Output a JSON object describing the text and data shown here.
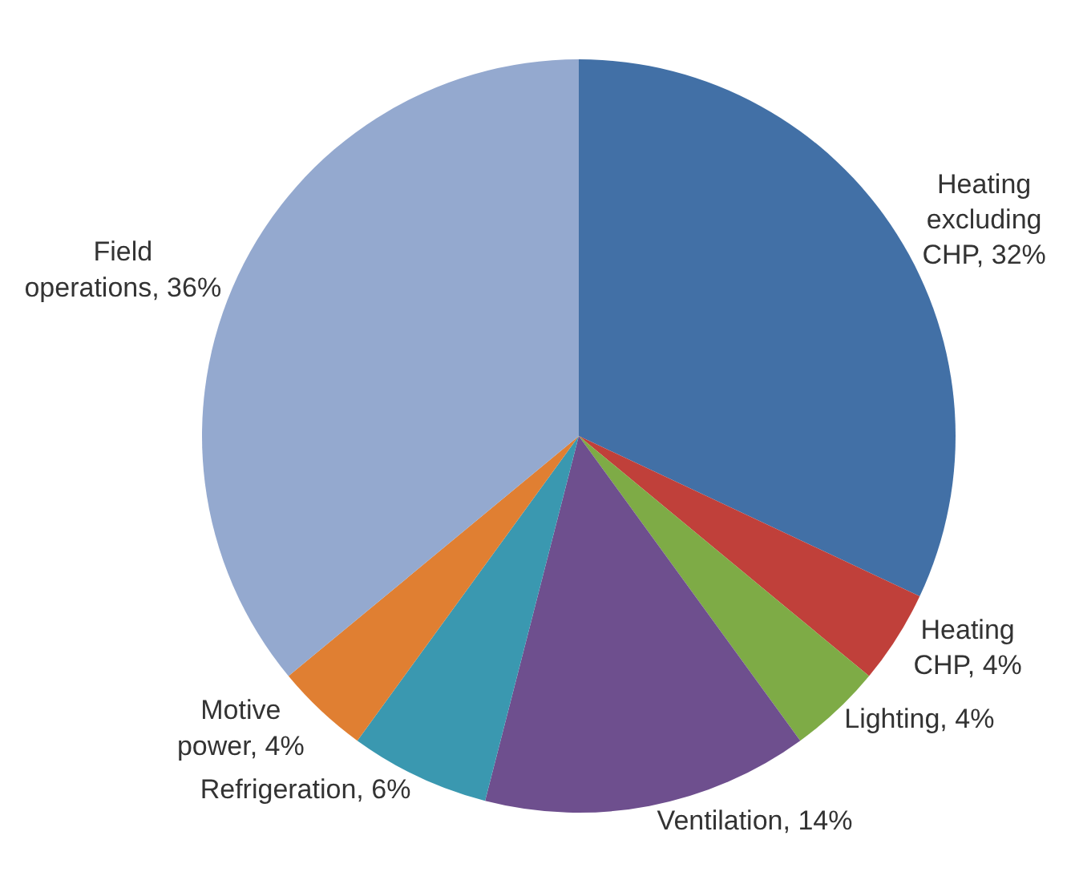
{
  "chart_data": {
    "type": "pie",
    "categories": [
      "Heating excluding CHP",
      "Heating CHP",
      "Lighting",
      "Ventilation",
      "Refrigeration",
      "Motive power",
      "Field operations"
    ],
    "values": [
      32,
      4,
      4,
      14,
      6,
      4,
      36
    ],
    "value_labels": [
      "32%",
      "4%",
      "4%",
      "14%",
      "6%",
      "4%",
      "36%"
    ],
    "colors": [
      "#4270a6",
      "#c0403a",
      "#7eab46",
      "#6e4f8e",
      "#3a98b0",
      "#e07f32",
      "#94a9cf"
    ],
    "legend": false
  }
}
